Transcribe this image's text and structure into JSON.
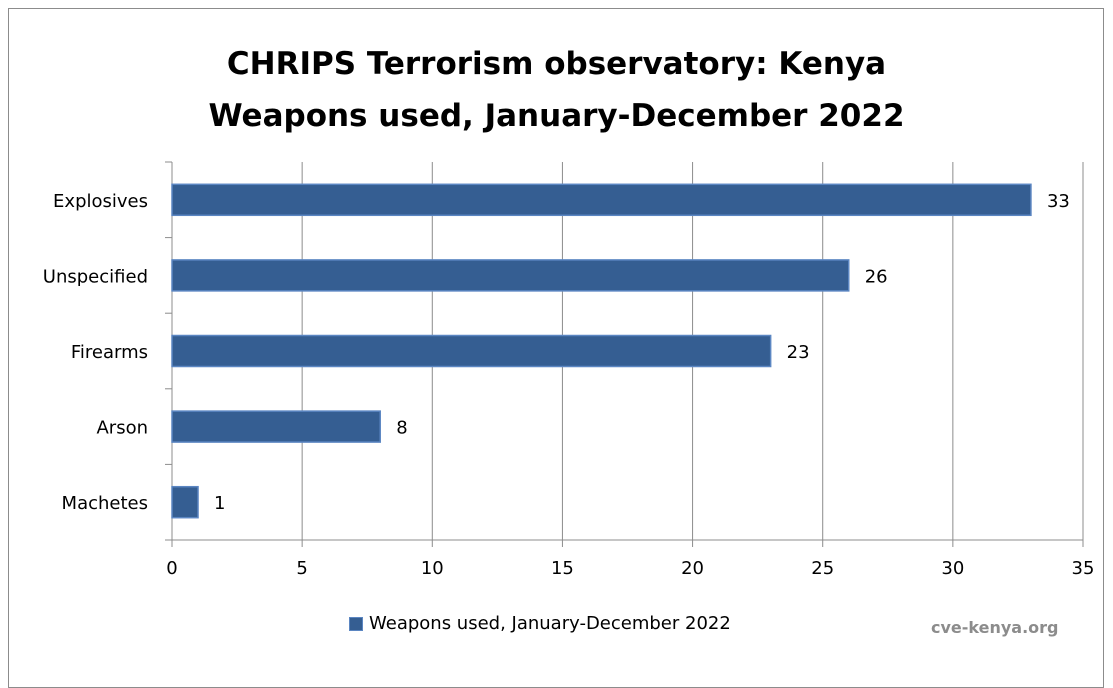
{
  "chart_data": {
    "type": "bar",
    "orientation": "horizontal",
    "title": [
      "CHRIPS Terrorism observatory: Kenya",
      "Weapons used, January-December 2022"
    ],
    "categories": [
      "Explosives",
      "Unspecified",
      "Firearms",
      "Arson",
      "Machetes"
    ],
    "series": [
      {
        "name": "Weapons used, January-December 2022",
        "values": [
          33,
          26,
          23,
          8,
          1
        ]
      }
    ],
    "xlim": [
      0,
      35
    ],
    "xticks": [
      0,
      5,
      10,
      15,
      20,
      25,
      30,
      35
    ],
    "grid": true,
    "legend_position": "bottom",
    "bar_color": "#355e92",
    "data_labels": true
  },
  "source_text": "cve-kenya.org"
}
